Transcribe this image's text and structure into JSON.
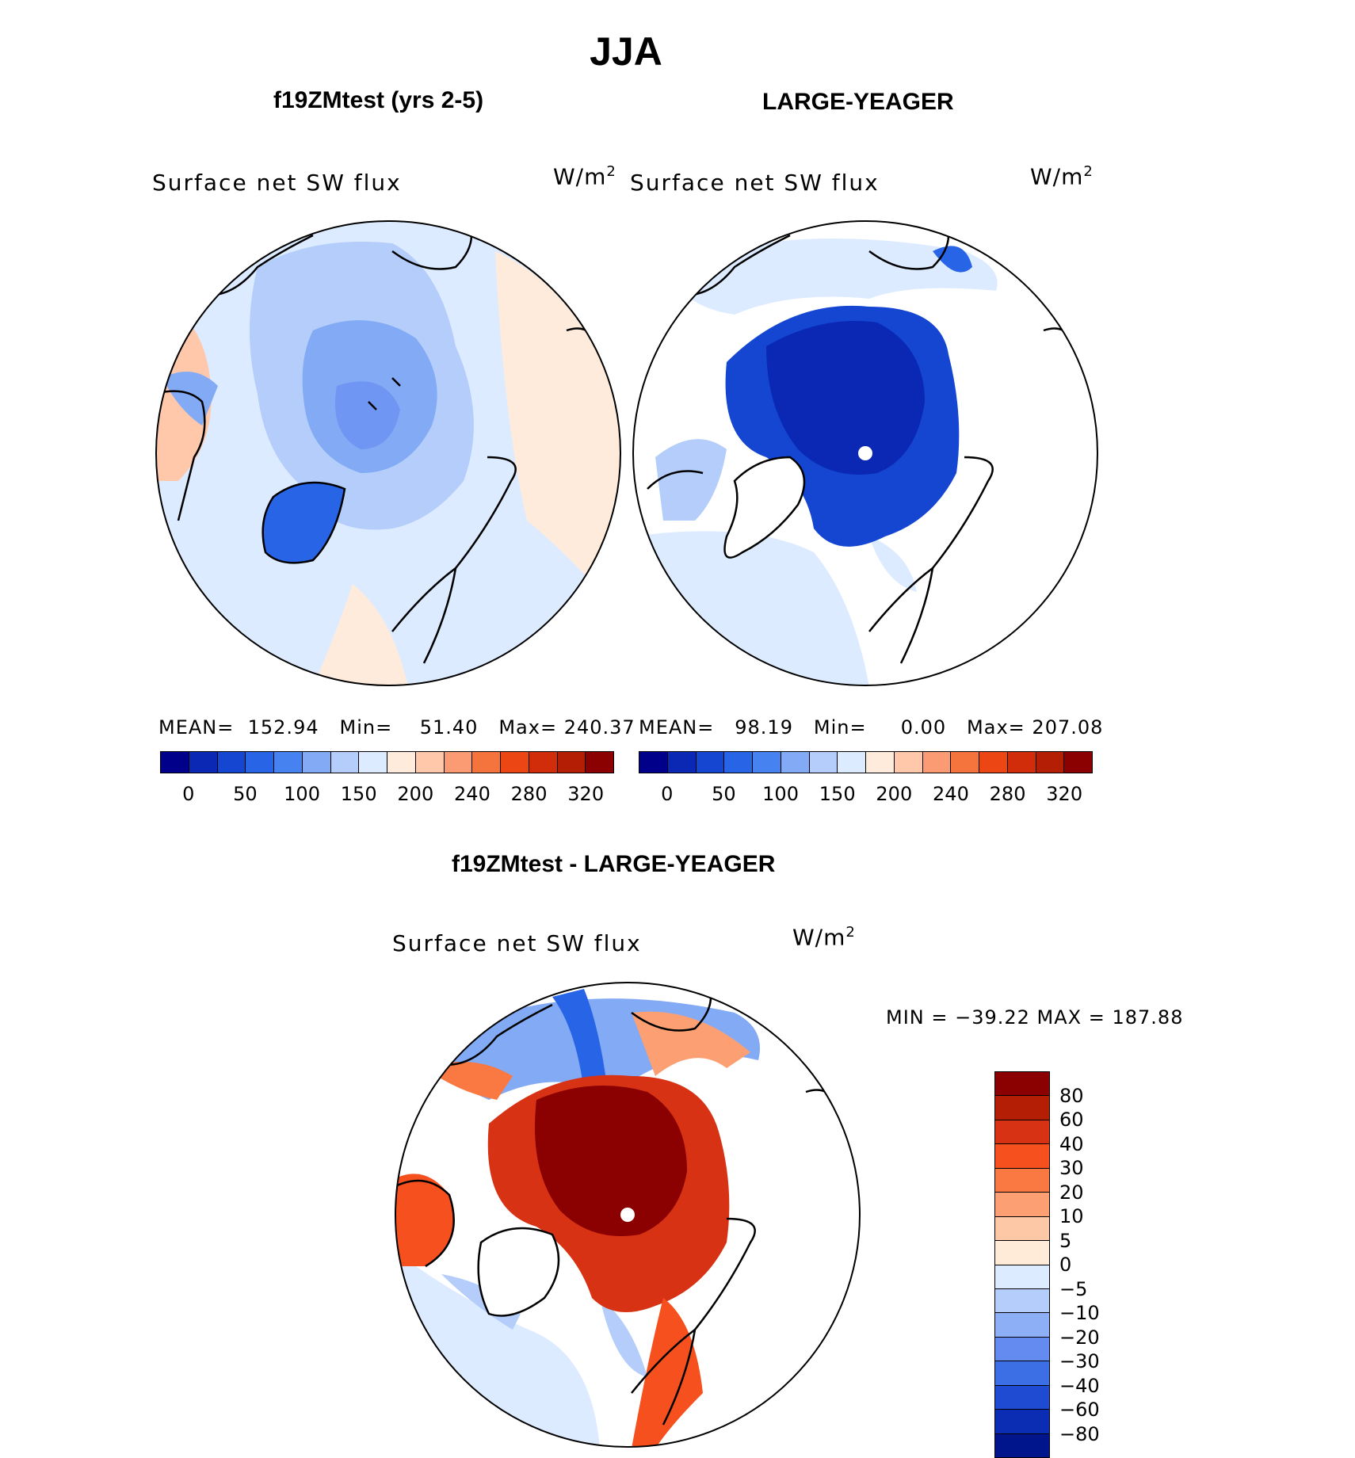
{
  "title": "JJA",
  "panels": [
    {
      "subtitle": "f19ZMtest (yrs 2-5)",
      "field_label": "Surface net SW flux",
      "units_base": "W/m",
      "units_exp": "2",
      "stats": {
        "mean_label": "MEAN=",
        "mean": "152.94",
        "min_label": "Min=",
        "min": "51.40",
        "max_label": "Max=",
        "max": "240.37"
      }
    },
    {
      "subtitle": "LARGE-YEAGER",
      "field_label": "Surface net SW flux",
      "units_base": "W/m",
      "units_exp": "2",
      "stats": {
        "mean_label": "MEAN=",
        "mean": "98.19",
        "min_label": "Min=",
        "min": "0.00",
        "max_label": "Max=",
        "max": "207.08"
      }
    }
  ],
  "abs_colorbar": {
    "colors": [
      "#00008b",
      "#0a28b4",
      "#1446d2",
      "#2864e6",
      "#4682f0",
      "#82aaf5",
      "#b4cdfa",
      "#dcebff",
      "#ffebdc",
      "#ffc8aa",
      "#fa9b73",
      "#f5733c",
      "#eb4614",
      "#d22d0a",
      "#b41e05",
      "#8b0000"
    ],
    "ticks": [
      "0",
      "50",
      "100",
      "150",
      "200",
      "240",
      "280",
      "320"
    ]
  },
  "diff_panel": {
    "subtitle": "f19ZMtest - LARGE-YEAGER",
    "field_label": "Surface net SW flux",
    "units_base": "W/m",
    "units_exp": "2",
    "stats_text": "MIN = −39.22 MAX = 187.88"
  },
  "diff_colorbar": {
    "colors": [
      "#8b0000",
      "#b41e05",
      "#d73214",
      "#f5501e",
      "#fa7841",
      "#fca073",
      "#fcc8a5",
      "#ffebd7",
      "#dcebff",
      "#b4cdfa",
      "#8caff5",
      "#648cf0",
      "#3c6ee6",
      "#1e4bd2",
      "#0a2db4",
      "#00148c"
    ],
    "ticks": [
      "80",
      "60",
      "40",
      "30",
      "20",
      "10",
      "5",
      "0",
      "−5",
      "−10",
      "−20",
      "−30",
      "−40",
      "−60",
      "−80"
    ]
  }
}
